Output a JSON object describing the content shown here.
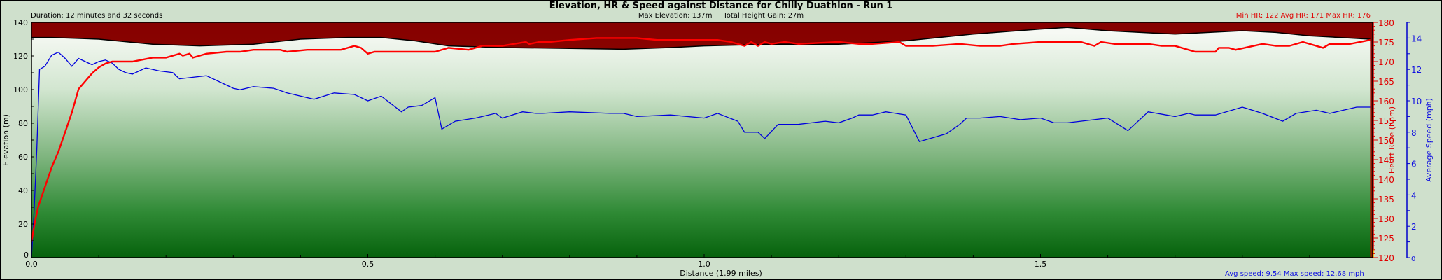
{
  "header": {
    "title": "Elevation, HR & Speed against Distance for Chilly Duathlon - Run 1",
    "duration": "Duration: 12 minutes and 32 seconds",
    "stats": "Max Elevation: 137m     Total Height Gain: 27m",
    "hr_stats": "Min HR: 122  Avg HR: 171  Max HR: 176"
  },
  "footer": {
    "xlabel": "Distance (1.99 miles)",
    "speed_stats": "Avg speed: 9.54  Max speed: 12.68 mph"
  },
  "axes": {
    "left_label": "Elevation (m)",
    "right1_label": "Heart Rate (bpm)",
    "right2_label": "Average Speed (mph)"
  },
  "colors": {
    "background": "#cfe0cc",
    "elevation_fill_top": "#f4f7f2",
    "elevation_fill_bottom": "#0a6610",
    "sky_fill_top": "#870000",
    "sky_fill_bottom": "#951a00",
    "hr_line": "#ff0000",
    "speed_line": "#0000dd",
    "hr_axis": "#e00000",
    "speed_axis": "#0000cc"
  },
  "chart_data": {
    "type": "line",
    "title": "Elevation, HR & Speed against Distance for Chilly Duathlon - Run 1",
    "subtitle": "Max Elevation: 137m  Total Height Gain: 27m",
    "xlabel": "Distance (1.99 miles)",
    "ylabel": "Elevation (m)",
    "y2label": "Heart Rate (bpm)",
    "y3label": "Average Speed (mph)",
    "xlim": [
      0,
      1.99
    ],
    "ylim": [
      0,
      140
    ],
    "y2lim": [
      120,
      180
    ],
    "y3lim": [
      0,
      15
    ],
    "x_ticks": [
      "0.0",
      "0.5",
      "1.0",
      "1.5"
    ],
    "y_ticks": [
      "0",
      "20",
      "40",
      "60",
      "80",
      "100",
      "120",
      "140"
    ],
    "y2_ticks": [
      "120",
      "125",
      "130",
      "135",
      "140",
      "145",
      "150",
      "155",
      "160",
      "165",
      "170",
      "175",
      "180"
    ],
    "y3_ticks": [
      "0",
      "2",
      "4",
      "6",
      "8",
      "10",
      "12",
      "14"
    ],
    "grid": false,
    "series": [
      {
        "name": "Elevation (m)",
        "type": "area",
        "x": [
          0,
          0.03,
          0.1,
          0.18,
          0.25,
          0.33,
          0.4,
          0.47,
          0.52,
          0.57,
          0.62,
          0.7,
          0.8,
          0.88,
          0.95,
          1.0,
          1.1,
          1.2,
          1.3,
          1.4,
          1.5,
          1.54,
          1.6,
          1.7,
          1.75,
          1.8,
          1.85,
          1.9,
          1.99
        ],
        "values": [
          131,
          131,
          130,
          127,
          126,
          127,
          130,
          131,
          131,
          129,
          126,
          125,
          124.5,
          124,
          125,
          126,
          127,
          127,
          129,
          133,
          136,
          137,
          135,
          133,
          134,
          135,
          134,
          132,
          130
        ]
      },
      {
        "name": "Heart Rate (bpm)",
        "type": "line",
        "axis": "right1",
        "x": [
          0,
          0.002,
          0.005,
          0.01,
          0.02,
          0.03,
          0.04,
          0.05,
          0.06,
          0.07,
          0.08,
          0.09,
          0.1,
          0.11,
          0.12,
          0.13,
          0.15,
          0.18,
          0.2,
          0.22,
          0.225,
          0.235,
          0.24,
          0.25,
          0.26,
          0.29,
          0.31,
          0.33,
          0.35,
          0.37,
          0.38,
          0.41,
          0.46,
          0.48,
          0.49,
          0.5,
          0.51,
          0.55,
          0.6,
          0.62,
          0.65,
          0.67,
          0.7,
          0.735,
          0.74,
          0.755,
          0.77,
          0.8,
          0.84,
          0.86,
          0.87,
          0.9,
          0.93,
          0.95,
          0.96,
          0.99,
          1.02,
          1.04,
          1.06,
          1.07,
          1.08,
          1.09,
          1.1,
          1.12,
          1.14,
          1.2,
          1.23,
          1.24,
          1.25,
          1.29,
          1.3,
          1.32,
          1.34,
          1.38,
          1.41,
          1.44,
          1.46,
          1.5,
          1.52,
          1.56,
          1.58,
          1.59,
          1.61,
          1.66,
          1.68,
          1.7,
          1.73,
          1.76,
          1.765,
          1.78,
          1.79,
          1.83,
          1.85,
          1.87,
          1.89,
          1.92,
          1.93,
          1.96,
          1.99
        ],
        "values": [
          124,
          126,
          129,
          133,
          138,
          143,
          147,
          152,
          157,
          163,
          165,
          167,
          168.5,
          169.5,
          170,
          170,
          170,
          171,
          171,
          172,
          171.5,
          172,
          171,
          171.5,
          172,
          172.5,
          172.5,
          173,
          173,
          173,
          172.5,
          173,
          173,
          174,
          173.5,
          172,
          172.5,
          172.5,
          172.5,
          173.5,
          173,
          174,
          174,
          175,
          174.5,
          175,
          175,
          175.5,
          176,
          176,
          176,
          176,
          175.5,
          175.5,
          175.5,
          175.5,
          175.5,
          175,
          174,
          175,
          174,
          175,
          174.5,
          175,
          174.5,
          175,
          174.5,
          174.5,
          174.5,
          175,
          174,
          174,
          174,
          174.5,
          174,
          174,
          174.5,
          175,
          175,
          175,
          174,
          175,
          174.5,
          174.5,
          174,
          174,
          172.5,
          172.5,
          173.5,
          173.5,
          173,
          174.5,
          174,
          174,
          175,
          173.5,
          174.5,
          174.5,
          175.5
        ]
      },
      {
        "name": "Average Speed (mph)",
        "type": "line",
        "axis": "right2",
        "x": [
          0,
          0.004,
          0.008,
          0.01,
          0.012,
          0.02,
          0.03,
          0.04,
          0.05,
          0.06,
          0.07,
          0.08,
          0.09,
          0.1,
          0.11,
          0.12,
          0.13,
          0.14,
          0.15,
          0.17,
          0.19,
          0.21,
          0.22,
          0.24,
          0.26,
          0.28,
          0.3,
          0.31,
          0.33,
          0.36,
          0.38,
          0.4,
          0.42,
          0.45,
          0.48,
          0.5,
          0.52,
          0.55,
          0.56,
          0.58,
          0.6,
          0.61,
          0.63,
          0.66,
          0.69,
          0.7,
          0.73,
          0.75,
          0.76,
          0.8,
          0.86,
          0.88,
          0.9,
          0.95,
          1.0,
          1.02,
          1.05,
          1.06,
          1.08,
          1.09,
          1.11,
          1.14,
          1.18,
          1.2,
          1.22,
          1.23,
          1.25,
          1.27,
          1.3,
          1.32,
          1.36,
          1.38,
          1.39,
          1.41,
          1.44,
          1.47,
          1.5,
          1.52,
          1.54,
          1.56,
          1.6,
          1.63,
          1.66,
          1.7,
          1.72,
          1.73,
          1.76,
          1.8,
          1.83,
          1.86,
          1.88,
          1.91,
          1.93,
          1.95,
          1.97,
          1.99
        ],
        "values": [
          0,
          3,
          7,
          9.5,
          12,
          12.2,
          12.9,
          13.1,
          12.7,
          12.2,
          12.7,
          12.5,
          12.3,
          12.5,
          12.6,
          12.4,
          12.0,
          11.8,
          11.7,
          12.1,
          11.9,
          11.8,
          11.4,
          11.5,
          11.6,
          11.2,
          10.8,
          10.7,
          10.9,
          10.8,
          10.5,
          10.3,
          10.1,
          10.5,
          10.4,
          10.0,
          10.3,
          9.3,
          9.6,
          9.7,
          10.2,
          8.2,
          8.7,
          8.9,
          9.2,
          8.9,
          9.3,
          9.2,
          9.2,
          9.3,
          9.2,
          9.2,
          9.0,
          9.1,
          8.9,
          9.2,
          8.7,
          8.0,
          8.0,
          7.6,
          8.5,
          8.5,
          8.7,
          8.6,
          8.9,
          9.1,
          9.1,
          9.3,
          9.1,
          7.4,
          7.9,
          8.5,
          8.9,
          8.9,
          9.0,
          8.8,
          8.9,
          8.6,
          8.6,
          8.7,
          8.9,
          8.1,
          9.3,
          9.0,
          9.2,
          9.1,
          9.1,
          9.6,
          9.2,
          8.7,
          9.2,
          9.4,
          9.2,
          9.4,
          9.6,
          9.6
        ]
      }
    ],
    "annotations": [
      "Duration: 12 minutes and 32 seconds",
      "Min HR: 122  Avg HR: 171  Max HR: 176",
      "Avg speed: 9.54  Max speed: 12.68 mph"
    ]
  }
}
